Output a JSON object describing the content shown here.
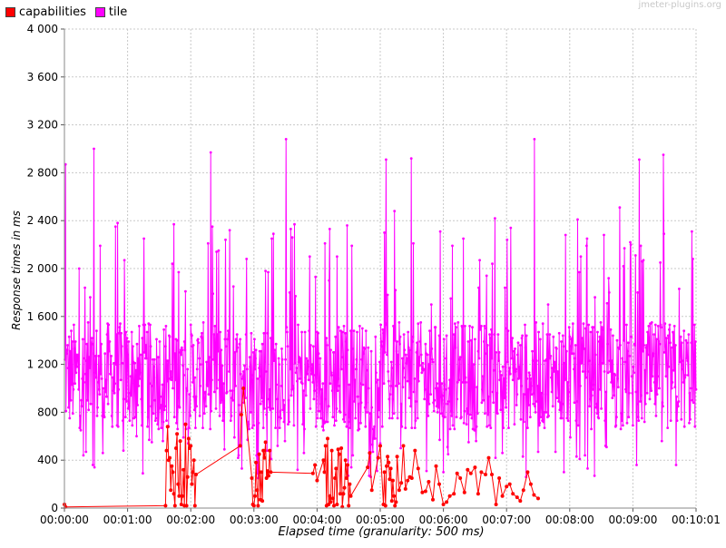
{
  "watermark": "jmeter-plugins.org",
  "chart_data": {
    "type": "line",
    "title": "",
    "xlabel": "Elapsed time (granularity: 500 ms)",
    "ylabel": "Response times in ms",
    "xlim_seconds": [
      0,
      600
    ],
    "ylim": [
      0,
      4000
    ],
    "y_ticks": [
      0,
      400,
      800,
      1200,
      1600,
      2000,
      2400,
      2800,
      3200,
      3600,
      4000
    ],
    "y_tick_labels": [
      "0",
      "400",
      "800",
      "1 200",
      "1 600",
      "2 000",
      "2 400",
      "2 800",
      "3 200",
      "3 600",
      "4 000"
    ],
    "x_ticks_seconds": [
      0,
      60,
      120,
      180,
      240,
      300,
      360,
      420,
      480,
      540,
      600
    ],
    "x_tick_labels": [
      "00:00:00",
      "00:01:00",
      "00:02:00",
      "00:03:00",
      "00:04:00",
      "00:05:00",
      "00:06:00",
      "00:07:00",
      "00:08:00",
      "00:09:00",
      "00:10:01"
    ],
    "grid": true,
    "legend_position": "top-left",
    "series": [
      {
        "name": "capabilities",
        "color": "#ff0000",
        "x_seconds": [
          0,
          1,
          96,
          97,
          98,
          99,
          100,
          101,
          102,
          103,
          104,
          105,
          106,
          107,
          108,
          109,
          110,
          111,
          112,
          113,
          114,
          115,
          116,
          117,
          118,
          119,
          120,
          121,
          122,
          123,
          124,
          125,
          167,
          168,
          170,
          178,
          179,
          180,
          181,
          182,
          183,
          184,
          185,
          186,
          187,
          188,
          189,
          190,
          191,
          192,
          193,
          194,
          195,
          196,
          236,
          238,
          240,
          246,
          247,
          248,
          249,
          250,
          251,
          252,
          253,
          254,
          255,
          256,
          257,
          258,
          259,
          260,
          261,
          262,
          263,
          264,
          265,
          266,
          267,
          268,
          269,
          270,
          271,
          272,
          288,
          290,
          292,
          298,
          300,
          303,
          304,
          305,
          306,
          307,
          308,
          309,
          310,
          311,
          312,
          313,
          314,
          315,
          316,
          318,
          320,
          322,
          324,
          326,
          328,
          330,
          333,
          336,
          340,
          343,
          346,
          350,
          353,
          356,
          360,
          363,
          366,
          370,
          373,
          376,
          380,
          383,
          386,
          390,
          393,
          396,
          400,
          403,
          406,
          410,
          413,
          416,
          420,
          423,
          426,
          430,
          433,
          436,
          440,
          443,
          446,
          450
        ],
        "values": [
          30,
          10,
          20,
          480,
          680,
          400,
          420,
          150,
          350,
          300,
          120,
          20,
          500,
          620,
          200,
          100,
          560,
          30,
          100,
          320,
          20,
          700,
          20,
          260,
          580,
          500,
          520,
          200,
          300,
          400,
          20,
          280,
          520,
          780,
          1000,
          250,
          30,
          20,
          100,
          380,
          150,
          20,
          450,
          70,
          300,
          60,
          480,
          420,
          550,
          250,
          310,
          270,
          480,
          300,
          290,
          360,
          230,
          400,
          300,
          520,
          20,
          580,
          30,
          100,
          50,
          480,
          80,
          20,
          250,
          330,
          30,
          490,
          450,
          120,
          500,
          10,
          120,
          170,
          400,
          250,
          360,
          20,
          200,
          100,
          340,
          460,
          150,
          420,
          520,
          30,
          300,
          20,
          350,
          430,
          380,
          240,
          330,
          60,
          230,
          100,
          20,
          50,
          430,
          150,
          210,
          520,
          160,
          230,
          260,
          250,
          480,
          330,
          130,
          140,
          220,
          70,
          350,
          200,
          30,
          50,
          100,
          120,
          290,
          250,
          130,
          320,
          290,
          340,
          120,
          300,
          280,
          420,
          280,
          30,
          250,
          100,
          180,
          200,
          120,
          90,
          60,
          150,
          300,
          200,
          110,
          80
        ]
      },
      {
        "name": "tile",
        "color": "#ff00ff",
        "x_seconds": [],
        "values": []
      }
    ]
  }
}
